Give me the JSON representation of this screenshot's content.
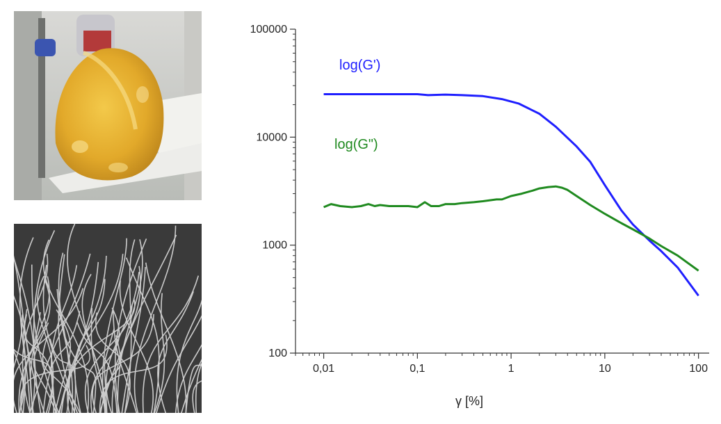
{
  "images": {
    "top": {
      "description": "photo-of-yellow-gel-on-spatula"
    },
    "bottom": {
      "description": "grayscale-microscopy-of-fibers"
    }
  },
  "chart_data": {
    "type": "line",
    "xscale": "log",
    "yscale": "log",
    "xlim": [
      0.005,
      130
    ],
    "ylim": [
      100,
      100000
    ],
    "xticks": [
      0.01,
      0.1,
      1,
      10,
      100
    ],
    "xtick_labels": [
      "0,01",
      "0,1",
      "1",
      "10",
      "100"
    ],
    "yticks": [
      100,
      1000,
      10000,
      100000
    ],
    "ytick_labels": [
      "100",
      "1000",
      "10000",
      "100000"
    ],
    "xlabel": "γ  [%]",
    "ylabel": "",
    "grid": false,
    "legend": "inline-labels",
    "series": [
      {
        "name": "log(G')",
        "color": "#1f1fff",
        "x": [
          0.01,
          0.02,
          0.05,
          0.1,
          0.13,
          0.2,
          0.3,
          0.5,
          0.8,
          1.2,
          2,
          3,
          5,
          7,
          10,
          15,
          20,
          30,
          40,
          60,
          100
        ],
        "y": [
          25000,
          25000,
          25000,
          25000,
          24500,
          24800,
          24500,
          24000,
          22500,
          20500,
          16500,
          12500,
          8200,
          5900,
          3600,
          2100,
          1550,
          1100,
          880,
          620,
          340
        ]
      },
      {
        "name": "log(G\")",
        "color": "#1f8a1f",
        "x": [
          0.01,
          0.012,
          0.015,
          0.02,
          0.025,
          0.03,
          0.035,
          0.04,
          0.05,
          0.06,
          0.08,
          0.1,
          0.12,
          0.14,
          0.17,
          0.2,
          0.25,
          0.3,
          0.4,
          0.5,
          0.7,
          0.8,
          1,
          1.3,
          1.7,
          2,
          2.5,
          3,
          3.5,
          4,
          5,
          7,
          10,
          15,
          20,
          30,
          40,
          60,
          100
        ],
        "y": [
          2250,
          2400,
          2300,
          2250,
          2300,
          2400,
          2300,
          2350,
          2300,
          2300,
          2300,
          2250,
          2500,
          2300,
          2300,
          2400,
          2400,
          2450,
          2500,
          2550,
          2650,
          2650,
          2850,
          3000,
          3200,
          3350,
          3450,
          3500,
          3400,
          3250,
          2850,
          2350,
          1950,
          1600,
          1400,
          1150,
          980,
          800,
          580
        ]
      }
    ]
  }
}
